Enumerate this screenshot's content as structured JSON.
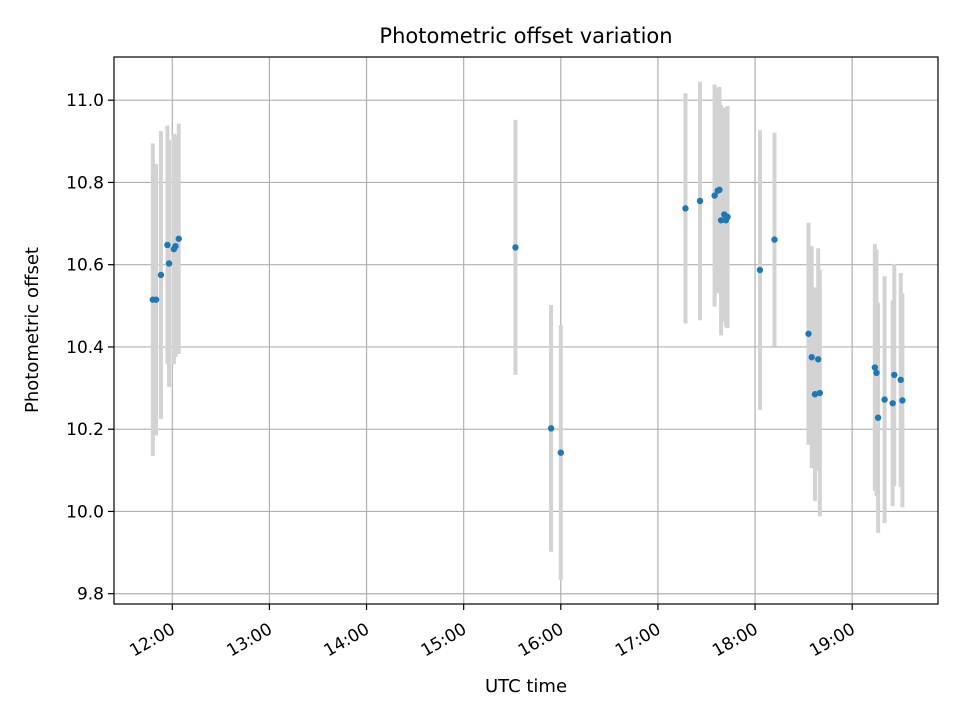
{
  "chart_data": {
    "type": "scatter",
    "title": "Photometric offset variation",
    "xlabel": "UTC time",
    "ylabel": "Photometric offset",
    "x_ticks": [
      "12:00",
      "13:00",
      "14:00",
      "15:00",
      "16:00",
      "17:00",
      "18:00",
      "19:00"
    ],
    "y_ticks": [
      "9.8",
      "10.0",
      "10.2",
      "10.4",
      "10.6",
      "10.8",
      "11.0"
    ],
    "xlim": [
      "11:24",
      "19:53"
    ],
    "ylim": [
      9.775,
      11.105
    ],
    "grid": true,
    "point_color": "#1f77b4",
    "errorbar_color": "#d3d3d3",
    "points": [
      {
        "x": "11:48",
        "y": 10.515,
        "err": 0.38
      },
      {
        "x": "11:50",
        "y": 10.515,
        "err": 0.33
      },
      {
        "x": "11:53",
        "y": 10.575,
        "err": 0.35
      },
      {
        "x": "11:57",
        "y": 10.648,
        "err": 0.29
      },
      {
        "x": "11:58",
        "y": 10.603,
        "err": 0.3
      },
      {
        "x": "12:01",
        "y": 10.638,
        "err": 0.28
      },
      {
        "x": "12:02",
        "y": 10.645,
        "err": 0.27
      },
      {
        "x": "12:04",
        "y": 10.663,
        "err": 0.28
      },
      {
        "x": "15:32",
        "y": 10.642,
        "err": 0.31
      },
      {
        "x": "15:54",
        "y": 10.202,
        "err": 0.3
      },
      {
        "x": "16:00",
        "y": 10.143,
        "err": 0.31
      },
      {
        "x": "17:17",
        "y": 10.737,
        "err": 0.28
      },
      {
        "x": "17:26",
        "y": 10.755,
        "err": 0.29
      },
      {
        "x": "17:35",
        "y": 10.768,
        "err": 0.27
      },
      {
        "x": "17:37",
        "y": 10.78,
        "err": 0.25
      },
      {
        "x": "17:38",
        "y": 10.782,
        "err": 0.25
      },
      {
        "x": "17:39",
        "y": 10.708,
        "err": 0.28
      },
      {
        "x": "17:41",
        "y": 10.722,
        "err": 0.26
      },
      {
        "x": "17:42",
        "y": 10.708,
        "err": 0.26
      },
      {
        "x": "17:43",
        "y": 10.716,
        "err": 0.27
      },
      {
        "x": "18:03",
        "y": 10.587,
        "err": 0.34
      },
      {
        "x": "18:12",
        "y": 10.661,
        "err": 0.26
      },
      {
        "x": "18:33",
        "y": 10.432,
        "err": 0.27
      },
      {
        "x": "18:35",
        "y": 10.375,
        "err": 0.27
      },
      {
        "x": "18:37",
        "y": 10.285,
        "err": 0.26
      },
      {
        "x": "18:39",
        "y": 10.37,
        "err": 0.27
      },
      {
        "x": "18:40",
        "y": 10.288,
        "err": 0.3
      },
      {
        "x": "19:14",
        "y": 10.35,
        "err": 0.3
      },
      {
        "x": "19:15",
        "y": 10.337,
        "err": 0.3
      },
      {
        "x": "19:16",
        "y": 10.228,
        "err": 0.28
      },
      {
        "x": "19:20",
        "y": 10.272,
        "err": 0.3
      },
      {
        "x": "19:25",
        "y": 10.263,
        "err": 0.25
      },
      {
        "x": "19:26",
        "y": 10.332,
        "err": 0.27
      },
      {
        "x": "19:30",
        "y": 10.32,
        "err": 0.26
      },
      {
        "x": "19:31",
        "y": 10.27,
        "err": 0.26
      }
    ]
  }
}
